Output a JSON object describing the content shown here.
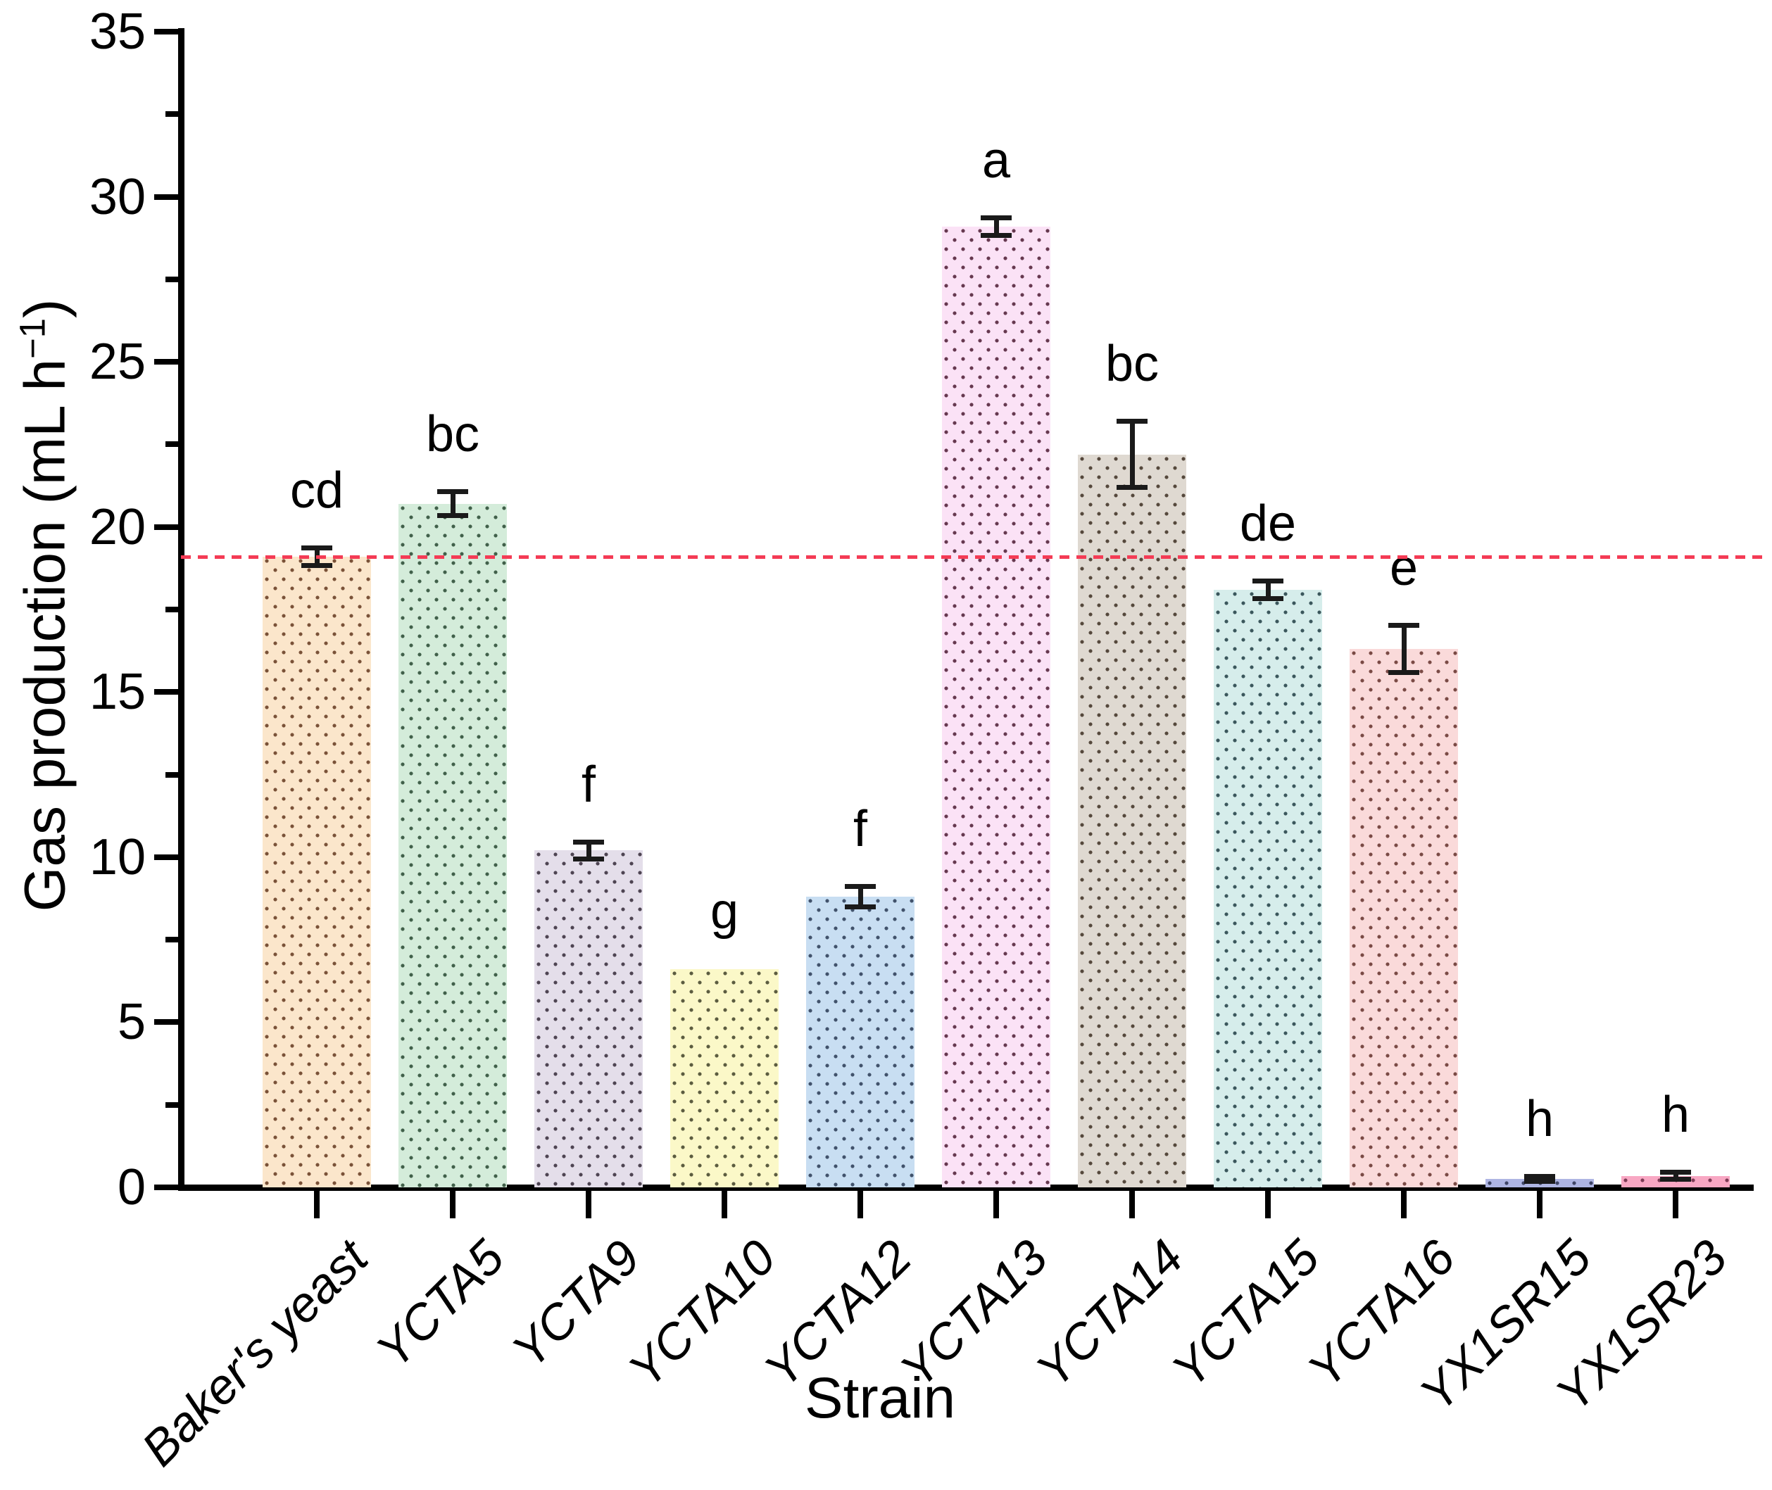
{
  "chart_data": {
    "type": "bar",
    "title": "",
    "xlabel": "Strain",
    "ylabel": "Gas production (mL h−1)",
    "ylabel_parts": {
      "prefix": "Gas production (mL h",
      "superscript": "−1",
      "suffix": ")"
    },
    "ylim": [
      0,
      35
    ],
    "ytick_major": [
      0,
      5,
      10,
      15,
      20,
      25,
      30,
      35
    ],
    "ytick_minor": [
      2.5,
      7.5,
      12.5,
      17.5,
      22.5,
      27.5,
      32.5
    ],
    "grid": false,
    "legend": null,
    "bar_pattern": "dotted",
    "reference_line": {
      "value": 19.1,
      "style": "dashed",
      "color": "#f43b55"
    },
    "categories": [
      "Baker's yeast",
      "YCTA5",
      "YCTA9",
      "YCTA10",
      "YCTA12",
      "YCTA13",
      "YCTA14",
      "YCTA15",
      "YCTA16",
      "YX1SR15",
      "YX1SR23"
    ],
    "bars": [
      {
        "category": "Baker's yeast",
        "value": 19.1,
        "error": 0.25,
        "sig_letter": "cd",
        "fill": "#fbe6cb",
        "dot": "#7a5238"
      },
      {
        "category": "YCTA5",
        "value": 20.7,
        "error": 0.35,
        "sig_letter": "bc",
        "fill": "#d4ecda",
        "dot": "#41604a"
      },
      {
        "category": "YCTA9",
        "value": 10.2,
        "error": 0.25,
        "sig_letter": "f",
        "fill": "#e4deea",
        "dot": "#4e4452"
      },
      {
        "category": "YCTA10",
        "value": 6.6,
        "error": 0,
        "sig_letter": "g",
        "fill": "#fbf8c8",
        "dot": "#5c5c40"
      },
      {
        "category": "YCTA12",
        "value": 8.8,
        "error": 0.3,
        "sig_letter": "f",
        "fill": "#c8def2",
        "dot": "#41526b"
      },
      {
        "category": "YCTA13",
        "value": 29.1,
        "error": 0.25,
        "sig_letter": "a",
        "fill": "#fbe2f6",
        "dot": "#66384f"
      },
      {
        "category": "YCTA14",
        "value": 22.2,
        "error": 1.0,
        "sig_letter": "bc",
        "fill": "#dfd9d1",
        "dot": "#55483c"
      },
      {
        "category": "YCTA15",
        "value": 18.1,
        "error": 0.25,
        "sig_letter": "de",
        "fill": "#d6edeb",
        "dot": "#3b575c"
      },
      {
        "category": "YCTA16",
        "value": 16.3,
        "error": 0.7,
        "sig_letter": "e",
        "fill": "#fadada",
        "dot": "#7a4a45"
      },
      {
        "category": "YX1SR15",
        "value": 0.25,
        "error": 0.06,
        "sig_letter": "h",
        "fill": "#aeb5e3",
        "dot": "#3f4566"
      },
      {
        "category": "YX1SR23",
        "value": 0.35,
        "error": 0.1,
        "sig_letter": "h",
        "fill": "#f8a7c3",
        "dot": "#7c3b55"
      }
    ]
  }
}
